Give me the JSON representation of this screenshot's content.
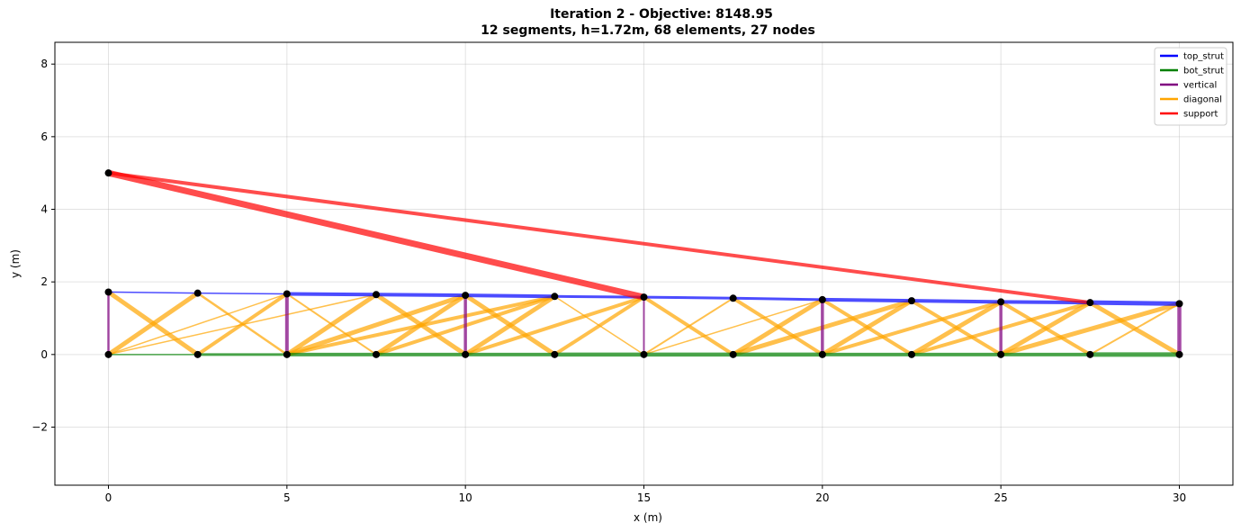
{
  "chart_data": {
    "type": "line",
    "title_line1": "Iteration 2 - Objective: 8148.95",
    "title_line2": "12 segments, h=1.72m, 68 elements, 27 nodes",
    "xlabel": "x (m)",
    "ylabel": "y (m)",
    "xlim": [
      -1.5,
      31.5
    ],
    "ylim": [
      -3.6,
      8.6
    ],
    "xticks": [
      0,
      5,
      10,
      15,
      20,
      25,
      30
    ],
    "yticks": [
      -2,
      0,
      2,
      4,
      6,
      8
    ],
    "grid": true,
    "legend_position": "top-right",
    "legend": [
      {
        "key": "top_strut",
        "label": "top_strut",
        "color": "#0000ff"
      },
      {
        "key": "bot_strut",
        "label": "bot_strut",
        "color": "#008000"
      },
      {
        "key": "vertical",
        "label": "vertical",
        "color": "#800080"
      },
      {
        "key": "diagonal",
        "label": "diagonal",
        "color": "#ffa500"
      },
      {
        "key": "support",
        "label": "support",
        "color": "#ff0000"
      }
    ],
    "top_nodes": [
      {
        "x": 0,
        "y": 1.72
      },
      {
        "x": 2.5,
        "y": 1.69
      },
      {
        "x": 5,
        "y": 1.67
      },
      {
        "x": 7.5,
        "y": 1.65
      },
      {
        "x": 10,
        "y": 1.63
      },
      {
        "x": 12.5,
        "y": 1.6
      },
      {
        "x": 15,
        "y": 1.58
      },
      {
        "x": 17.5,
        "y": 1.55
      },
      {
        "x": 20,
        "y": 1.51
      },
      {
        "x": 22.5,
        "y": 1.48
      },
      {
        "x": 25,
        "y": 1.45
      },
      {
        "x": 27.5,
        "y": 1.43
      },
      {
        "x": 30,
        "y": 1.4
      }
    ],
    "bottom_nodes": [
      {
        "x": 0,
        "y": 0
      },
      {
        "x": 2.5,
        "y": 0
      },
      {
        "x": 5,
        "y": 0
      },
      {
        "x": 7.5,
        "y": 0
      },
      {
        "x": 10,
        "y": 0
      },
      {
        "x": 12.5,
        "y": 0
      },
      {
        "x": 15,
        "y": 0
      },
      {
        "x": 17.5,
        "y": 0
      },
      {
        "x": 20,
        "y": 0
      },
      {
        "x": 22.5,
        "y": 0
      },
      {
        "x": 25,
        "y": 0
      },
      {
        "x": 27.5,
        "y": 0
      },
      {
        "x": 30,
        "y": 0
      }
    ],
    "support_node": {
      "x": 0,
      "y": 5.0
    },
    "top_strut_widths": [
      1.5,
      1.5,
      4,
      4,
      4,
      3,
      3,
      3,
      4,
      4,
      4,
      5
    ],
    "bot_strut_widths": [
      1.5,
      3,
      4,
      4,
      4,
      4.5,
      4.5,
      4.5,
      4,
      4,
      4,
      5
    ],
    "vertical_widths": [
      2.5,
      0,
      4,
      0,
      3.5,
      0,
      2,
      0,
      3.5,
      0,
      3.5,
      0,
      4.5
    ],
    "diagonals": [
      {
        "from": [
          "top",
          0
        ],
        "to": [
          "bot",
          1
        ],
        "w": 5
      },
      {
        "from": [
          "bot",
          0
        ],
        "to": [
          "top",
          1
        ],
        "w": 5
      },
      {
        "from": [
          "bot",
          0
        ],
        "to": [
          "top",
          2
        ],
        "w": 1.5
      },
      {
        "from": [
          "bot",
          0
        ],
        "to": [
          "top",
          3
        ],
        "w": 1.5
      },
      {
        "from": [
          "top",
          1
        ],
        "to": [
          "bot",
          2
        ],
        "w": 2.5
      },
      {
        "from": [
          "bot",
          1
        ],
        "to": [
          "top",
          2
        ],
        "w": 4
      },
      {
        "from": [
          "top",
          2
        ],
        "to": [
          "bot",
          3
        ],
        "w": 2
      },
      {
        "from": [
          "bot",
          2
        ],
        "to": [
          "top",
          3
        ],
        "w": 5
      },
      {
        "from": [
          "bot",
          2
        ],
        "to": [
          "top",
          4
        ],
        "w": 5
      },
      {
        "from": [
          "bot",
          2
        ],
        "to": [
          "top",
          5
        ],
        "w": 4
      },
      {
        "from": [
          "top",
          3
        ],
        "to": [
          "bot",
          4
        ],
        "w": 5
      },
      {
        "from": [
          "bot",
          3
        ],
        "to": [
          "top",
          4
        ],
        "w": 5
      },
      {
        "from": [
          "bot",
          3
        ],
        "to": [
          "top",
          5
        ],
        "w": 4
      },
      {
        "from": [
          "top",
          4
        ],
        "to": [
          "bot",
          5
        ],
        "w": 5
      },
      {
        "from": [
          "bot",
          4
        ],
        "to": [
          "top",
          5
        ],
        "w": 5
      },
      {
        "from": [
          "bot",
          4
        ],
        "to": [
          "top",
          6
        ],
        "w": 4
      },
      {
        "from": [
          "top",
          5
        ],
        "to": [
          "bot",
          6
        ],
        "w": 1.5
      },
      {
        "from": [
          "bot",
          5
        ],
        "to": [
          "top",
          6
        ],
        "w": 4
      },
      {
        "from": [
          "top",
          6
        ],
        "to": [
          "bot",
          7
        ],
        "w": 4
      },
      {
        "from": [
          "bot",
          6
        ],
        "to": [
          "top",
          7
        ],
        "w": 2
      },
      {
        "from": [
          "bot",
          6
        ],
        "to": [
          "top",
          8
        ],
        "w": 1.5
      },
      {
        "from": [
          "top",
          7
        ],
        "to": [
          "bot",
          8
        ],
        "w": 4
      },
      {
        "from": [
          "bot",
          7
        ],
        "to": [
          "top",
          8
        ],
        "w": 5
      },
      {
        "from": [
          "bot",
          7
        ],
        "to": [
          "top",
          9
        ],
        "w": 5
      },
      {
        "from": [
          "top",
          8
        ],
        "to": [
          "bot",
          9
        ],
        "w": 4
      },
      {
        "from": [
          "bot",
          8
        ],
        "to": [
          "top",
          9
        ],
        "w": 5
      },
      {
        "from": [
          "bot",
          8
        ],
        "to": [
          "top",
          10
        ],
        "w": 4
      },
      {
        "from": [
          "top",
          9
        ],
        "to": [
          "bot",
          10
        ],
        "w": 4
      },
      {
        "from": [
          "bot",
          9
        ],
        "to": [
          "top",
          10
        ],
        "w": 5
      },
      {
        "from": [
          "bot",
          9
        ],
        "to": [
          "top",
          11
        ],
        "w": 4
      },
      {
        "from": [
          "top",
          10
        ],
        "to": [
          "bot",
          11
        ],
        "w": 4
      },
      {
        "from": [
          "bot",
          10
        ],
        "to": [
          "top",
          11
        ],
        "w": 5
      },
      {
        "from": [
          "bot",
          10
        ],
        "to": [
          "top",
          12
        ],
        "w": 5
      },
      {
        "from": [
          "top",
          11
        ],
        "to": [
          "bot",
          12
        ],
        "w": 5
      },
      {
        "from": [
          "bot",
          11
        ],
        "to": [
          "top",
          12
        ],
        "w": 2
      }
    ],
    "supports": [
      {
        "to": [
          "top",
          6
        ],
        "w": 7
      },
      {
        "to": [
          "top",
          11
        ],
        "w": 4
      }
    ]
  }
}
